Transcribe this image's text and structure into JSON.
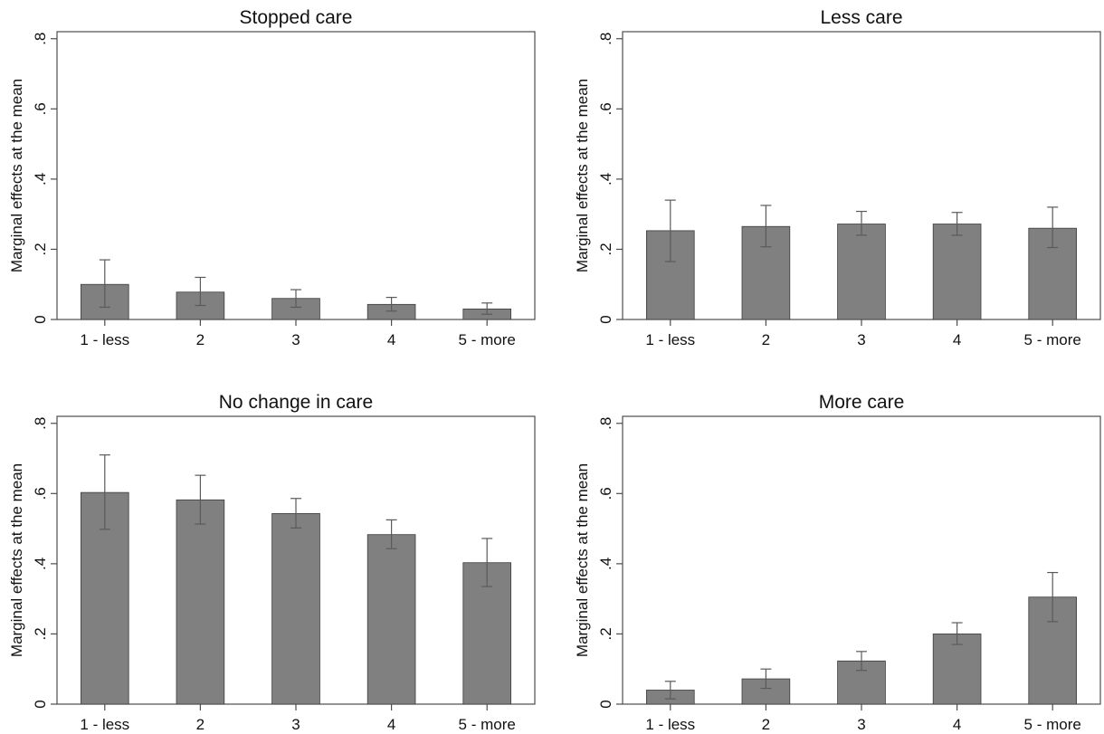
{
  "chart_data": [
    {
      "type": "bar",
      "title": "Stopped care",
      "ylabel": "Marginal effects at the mean",
      "xlabel": "",
      "categories": [
        "1 - less",
        "2",
        "3",
        "4",
        "5 - more"
      ],
      "values": [
        0.1,
        0.078,
        0.06,
        0.043,
        0.03
      ],
      "ci_low": [
        0.035,
        0.04,
        0.035,
        0.024,
        0.015
      ],
      "ci_high": [
        0.17,
        0.12,
        0.085,
        0.063,
        0.047
      ],
      "yticks": [
        0,
        0.2,
        0.4,
        0.6,
        0.8
      ],
      "yticklabels": [
        "0",
        ".2",
        ".4",
        ".6",
        ".8"
      ],
      "ylim": [
        0,
        0.82
      ],
      "bar_color": "#808080",
      "grid": false
    },
    {
      "type": "bar",
      "title": "Less care",
      "ylabel": "Marginal effects at the mean",
      "xlabel": "",
      "categories": [
        "1 - less",
        "2",
        "3",
        "4",
        "5 - more"
      ],
      "values": [
        0.253,
        0.265,
        0.272,
        0.272,
        0.26
      ],
      "ci_low": [
        0.165,
        0.207,
        0.24,
        0.24,
        0.205
      ],
      "ci_high": [
        0.34,
        0.325,
        0.308,
        0.305,
        0.32
      ],
      "yticks": [
        0,
        0.2,
        0.4,
        0.6,
        0.8
      ],
      "yticklabels": [
        "0",
        ".2",
        ".4",
        ".6",
        ".8"
      ],
      "ylim": [
        0,
        0.82
      ],
      "bar_color": "#808080",
      "grid": false
    },
    {
      "type": "bar",
      "title": "No change in care",
      "ylabel": "Marginal effects at the mean",
      "xlabel": "",
      "categories": [
        "1 - less",
        "2",
        "3",
        "4",
        "5 - more"
      ],
      "values": [
        0.603,
        0.582,
        0.543,
        0.483,
        0.403
      ],
      "ci_low": [
        0.498,
        0.513,
        0.502,
        0.443,
        0.335
      ],
      "ci_high": [
        0.71,
        0.652,
        0.586,
        0.525,
        0.472
      ],
      "yticks": [
        0,
        0.2,
        0.4,
        0.6,
        0.8
      ],
      "yticklabels": [
        "0",
        ".2",
        ".4",
        ".6",
        ".8"
      ],
      "ylim": [
        0,
        0.82
      ],
      "bar_color": "#808080",
      "grid": false
    },
    {
      "type": "bar",
      "title": "More care",
      "ylabel": "Marginal effects at the mean",
      "xlabel": "",
      "categories": [
        "1 - less",
        "2",
        "3",
        "4",
        "5 - more"
      ],
      "values": [
        0.04,
        0.072,
        0.123,
        0.2,
        0.305
      ],
      "ci_low": [
        0.015,
        0.045,
        0.096,
        0.17,
        0.235
      ],
      "ci_high": [
        0.065,
        0.1,
        0.15,
        0.232,
        0.375
      ],
      "yticks": [
        0,
        0.2,
        0.4,
        0.6,
        0.8
      ],
      "yticklabels": [
        "0",
        ".2",
        ".4",
        ".6",
        ".8"
      ],
      "ylim": [
        0,
        0.82
      ],
      "bar_color": "#808080",
      "grid": false
    }
  ]
}
